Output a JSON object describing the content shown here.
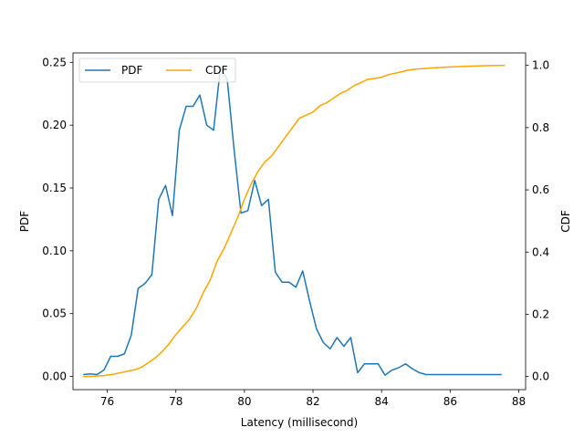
{
  "chart_data": {
    "type": "line",
    "xlabel": "Latency (millisecond)",
    "ylabel_left": "PDF",
    "ylabel_right": "CDF",
    "xlim": [
      75,
      88.2
    ],
    "ylim_left": [
      -0.0105,
      0.2575
    ],
    "ylim_right": [
      -0.042,
      1.04
    ],
    "xticks": [
      76,
      78,
      80,
      82,
      84,
      86,
      88
    ],
    "yticks_left": [
      0.0,
      0.05,
      0.1,
      0.15,
      0.2,
      0.25
    ],
    "yticks_left_labels": [
      "0.00",
      "0.05",
      "0.10",
      "0.15",
      "0.20",
      "0.25"
    ],
    "yticks_right": [
      0.0,
      0.2,
      0.4,
      0.6,
      0.8,
      1.0
    ],
    "yticks_right_labels": [
      "0.0",
      "0.2",
      "0.4",
      "0.6",
      "0.8",
      "1.0"
    ],
    "legend": {
      "placement": "upper-left",
      "columns": 2
    },
    "series": [
      {
        "name": "PDF",
        "axis": "left",
        "color": "#1f77b4",
        "x": [
          75.3,
          75.5,
          75.7,
          75.9,
          76.1,
          76.3,
          76.5,
          76.7,
          76.9,
          77.1,
          77.3,
          77.5,
          77.7,
          77.9,
          78.1,
          78.3,
          78.5,
          78.7,
          78.9,
          79.1,
          79.3,
          79.5,
          79.7,
          79.9,
          80.1,
          80.3,
          80.5,
          80.7,
          80.9,
          81.1,
          81.3,
          81.5,
          81.7,
          81.9,
          82.1,
          82.3,
          82.5,
          82.7,
          82.9,
          83.1,
          83.3,
          83.5,
          83.7,
          83.9,
          84.1,
          84.3,
          84.5,
          84.7,
          84.9,
          85.1,
          85.3,
          85.5,
          85.7,
          85.9,
          86.1,
          86.3,
          86.5,
          86.7,
          86.9,
          87.1,
          87.3,
          87.5
        ],
        "y": [
          0.0015,
          0.002,
          0.0015,
          0.005,
          0.016,
          0.016,
          0.018,
          0.033,
          0.07,
          0.074,
          0.081,
          0.141,
          0.152,
          0.128,
          0.196,
          0.215,
          0.215,
          0.224,
          0.2,
          0.196,
          0.246,
          0.236,
          0.18,
          0.13,
          0.132,
          0.156,
          0.136,
          0.141,
          0.083,
          0.075,
          0.075,
          0.071,
          0.084,
          0.06,
          0.038,
          0.027,
          0.022,
          0.031,
          0.024,
          0.031,
          0.003,
          0.01,
          0.01,
          0.01,
          0.001,
          0.005,
          0.007,
          0.01,
          0.006,
          0.003,
          0.0015,
          0.0015,
          0.0015,
          0.0015,
          0.0015,
          0.0015,
          0.0015,
          0.0015,
          0.0015,
          0.0015,
          0.0015,
          0.0015
        ]
      },
      {
        "name": "CDF",
        "axis": "right",
        "color": "#ffa500",
        "x": [
          75.3,
          75.6,
          75.9,
          76.2,
          76.5,
          76.8,
          77.0,
          77.2,
          77.4,
          77.6,
          77.8,
          78.0,
          78.2,
          78.4,
          78.6,
          78.8,
          79.0,
          79.2,
          79.4,
          79.6,
          79.8,
          80.0,
          80.2,
          80.4,
          80.6,
          80.8,
          81.0,
          81.2,
          81.4,
          81.6,
          81.8,
          82.0,
          82.2,
          82.4,
          82.6,
          82.8,
          83.0,
          83.2,
          83.4,
          83.6,
          83.8,
          84.0,
          84.2,
          84.4,
          84.6,
          84.8,
          85.0,
          85.5,
          86.0,
          86.5,
          87.0,
          87.6
        ],
        "y": [
          0.0,
          0.001,
          0.003,
          0.008,
          0.015,
          0.022,
          0.03,
          0.045,
          0.06,
          0.08,
          0.105,
          0.135,
          0.16,
          0.185,
          0.22,
          0.27,
          0.31,
          0.37,
          0.41,
          0.46,
          0.51,
          0.57,
          0.62,
          0.66,
          0.69,
          0.71,
          0.74,
          0.77,
          0.8,
          0.83,
          0.84,
          0.85,
          0.87,
          0.88,
          0.895,
          0.91,
          0.92,
          0.935,
          0.945,
          0.955,
          0.958,
          0.962,
          0.97,
          0.975,
          0.98,
          0.985,
          0.988,
          0.992,
          0.995,
          0.997,
          0.999,
          1.0
        ]
      }
    ]
  }
}
